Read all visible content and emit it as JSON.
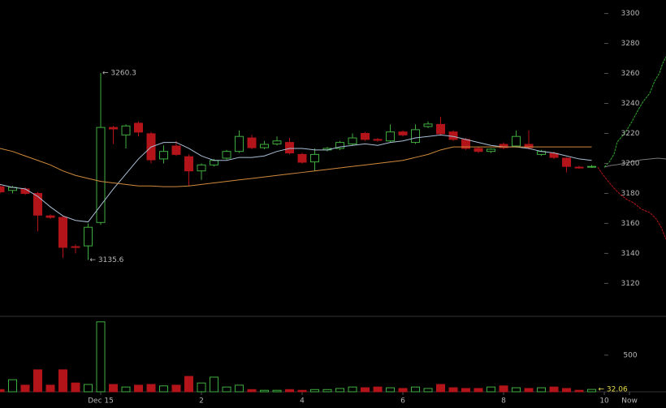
{
  "chart_data": {
    "type": "candlestick",
    "x": [
      0,
      1,
      2,
      3,
      4,
      5,
      6,
      7,
      8,
      9,
      10,
      11,
      12,
      13,
      14,
      15,
      16,
      17,
      18,
      19,
      20,
      21,
      22,
      23,
      24,
      25,
      26,
      27,
      28,
      29,
      30,
      31,
      32,
      33,
      34,
      35,
      36,
      37,
      38,
      39,
      40,
      41,
      42,
      43,
      44,
      45,
      46,
      47
    ],
    "open": [
      3184.5,
      3182,
      3183,
      3180,
      3165,
      3164,
      3144.5,
      3145,
      3160.6,
      3224,
      3219,
      3226.8,
      3219.8,
      3203,
      3211.6,
      3204.5,
      3195,
      3199,
      3203.5,
      3208,
      3217,
      3210.5,
      3213,
      3214,
      3206,
      3201,
      3209,
      3210,
      3213,
      3220,
      3216,
      3215,
      3221,
      3214,
      3224.6,
      3226,
      3221,
      3216,
      3210,
      3208,
      3212.7,
      3211.6,
      3212.7,
      3206,
      3206.7,
      3203.5,
      3197.5,
      3197.5
    ],
    "high": [
      3186,
      3185,
      3184,
      3181,
      3166,
      3165,
      3146,
      3160,
      3260.3,
      3225,
      3226,
      3228,
      3221,
      3212,
      3215,
      3206,
      3200,
      3203,
      3209,
      3222,
      3219,
      3215,
      3218,
      3217,
      3207,
      3210,
      3211,
      3215,
      3220,
      3221,
      3217,
      3226,
      3222,
      3226,
      3228,
      3231,
      3222,
      3217,
      3211,
      3210,
      3214,
      3222,
      3222,
      3209,
      3208,
      3204,
      3198.5,
      3199
    ],
    "low": [
      3180,
      3180,
      3179,
      3154.7,
      3163,
      3137,
      3140,
      3135.6,
      3159,
      3213,
      3210,
      3218,
      3200,
      3200,
      3205,
      3185,
      3189,
      3198,
      3202.5,
      3207,
      3209.5,
      3209.5,
      3212,
      3206,
      3199.8,
      3195,
      3208,
      3209,
      3212,
      3215,
      3214.5,
      3214,
      3218,
      3213,
      3223.6,
      3218.8,
      3215,
      3209,
      3207,
      3207,
      3209.5,
      3210.6,
      3209.5,
      3205,
      3203,
      3194,
      3196.5,
      3197
    ],
    "close": [
      3181,
      3184,
      3180,
      3165.5,
      3164,
      3144,
      3144,
      3157.4,
      3224,
      3223,
      3225,
      3220.9,
      3202.4,
      3208,
      3206,
      3195,
      3199,
      3202,
      3208,
      3218,
      3210.5,
      3212.7,
      3215,
      3207,
      3200.8,
      3206,
      3210,
      3214,
      3217,
      3216,
      3215.5,
      3221,
      3219,
      3222.5,
      3226.3,
      3219.8,
      3216,
      3210,
      3208,
      3209.5,
      3210.5,
      3218,
      3210.5,
      3208,
      3204,
      3198,
      3197,
      3198
    ],
    "volume": [
      30,
      165,
      90,
      300,
      90,
      300,
      120,
      100,
      955,
      100,
      65,
      90,
      100,
      80,
      90,
      210,
      120,
      200,
      65,
      90,
      30,
      20,
      20,
      30,
      20,
      30,
      30,
      45,
      65,
      55,
      65,
      55,
      45,
      65,
      45,
      100,
      55,
      45,
      45,
      65,
      80,
      55,
      45,
      55,
      65,
      45,
      20,
      32.06
    ],
    "up_color": "#3fae3f",
    "down_color": "#b3141a",
    "series": [
      {
        "color": "#a9bfd6",
        "values": [
          3186,
          3184,
          3183,
          3178,
          3171,
          3165,
          3162,
          3161,
          3172,
          3183,
          3193,
          3203,
          3211,
          3214,
          3214,
          3210,
          3205,
          3202,
          3202,
          3204,
          3204,
          3205,
          3208,
          3210,
          3210,
          3209,
          3209,
          3211,
          3212,
          3213,
          3212,
          3214,
          3215,
          3217,
          3218,
          3219,
          3218,
          3216,
          3214,
          3212,
          3211,
          3211,
          3210,
          3208,
          3207,
          3205,
          3203,
          3202
        ]
      },
      {
        "color": "#d08a3c",
        "values": [
          3210,
          3208,
          3205,
          3202,
          3199,
          3195,
          3192,
          3190,
          3188,
          3187,
          3186,
          3185,
          3185,
          3184.5,
          3184.5,
          3185,
          3186,
          3187,
          3188,
          3189,
          3190,
          3191,
          3192,
          3193,
          3194,
          3195,
          3196,
          3197,
          3198,
          3199,
          3200,
          3201,
          3202,
          3204,
          3206,
          3209,
          3211,
          3211,
          3211,
          3211,
          3211,
          3211,
          3211,
          3211,
          3211,
          3211,
          3211,
          3211
        ]
      }
    ],
    "xlim": [
      0,
      52.9
    ],
    "xticks": [
      {
        "value": 8,
        "label": "Dec 15"
      },
      {
        "value": 16,
        "label": "2"
      },
      {
        "value": 24,
        "label": "4"
      },
      {
        "value": 32,
        "label": "6"
      },
      {
        "value": 40,
        "label": "8"
      },
      {
        "value": 48,
        "label": "10"
      },
      {
        "value": 50,
        "label": "Now"
      }
    ],
    "ylim": [
      3098,
      3309
    ],
    "yticks": [
      3120,
      3140,
      3160,
      3180,
      3200,
      3220,
      3240,
      3260,
      3280,
      3300
    ],
    "volume_ylim": [
      0,
      1030
    ],
    "volume_yticks": [
      500
    ],
    "high_label": "← 3260.3",
    "low_label": "← 3135.6",
    "volume_label": "← 32.06"
  }
}
